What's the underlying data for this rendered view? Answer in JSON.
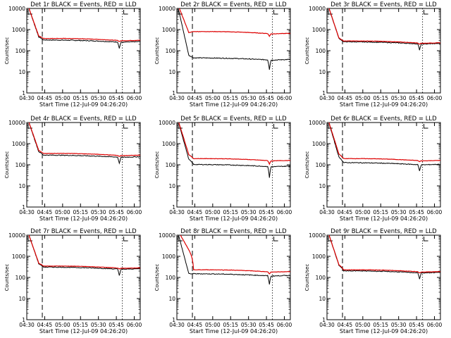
{
  "chart_data": {
    "type": "line",
    "layout": "3x3 grid",
    "x_tick_labels": [
      "04:30",
      "04:45",
      "05:00",
      "05:15",
      "05:30",
      "05:45",
      "06:00"
    ],
    "x_range_minutes": [
      0,
      95
    ],
    "xlabel": "Start Time (12-Jul-09 04:26:20)",
    "ylabel": "Counts/sec",
    "y_scale": "log",
    "ylim": [
      1,
      10000
    ],
    "y_tick_labels": [
      "1",
      "10",
      "100",
      "1000",
      "10000"
    ],
    "legend_text": "BLACK = Events, RED = LLD",
    "series_colors": {
      "events": "#000000",
      "lld": "#dd0000"
    },
    "marker_lines": [
      {
        "style": "dashed",
        "minute": 13
      },
      {
        "style": "dotted",
        "minute": 80
      },
      {
        "style": "dotted",
        "minute": 95
      }
    ],
    "panels": [
      {
        "title": "Det 1r BLACK = Events, RED = LLD",
        "events_level": 280,
        "lld_level": 330,
        "dip_depth": 0.5,
        "events_start": 450,
        "lld_start": 500
      },
      {
        "title": "Det 2r BLACK = Events, RED = LLD",
        "events_level": 40,
        "lld_level": 700,
        "dip_depth": 0.35,
        "events_start": 60,
        "lld_start": 720
      },
      {
        "title": "Det 3r BLACK = Events, RED = LLD",
        "events_level": 230,
        "lld_level": 250,
        "dip_depth": 0.5,
        "events_start": 380,
        "lld_start": 400
      },
      {
        "title": "Det 4r BLACK = Events, RED = LLD",
        "events_level": 250,
        "lld_level": 300,
        "dip_depth": 0.5,
        "events_start": 420,
        "lld_start": 480
      },
      {
        "title": "Det 5r BLACK = Events, RED = LLD",
        "events_level": 90,
        "lld_level": 170,
        "dip_depth": 0.3,
        "events_start": 180,
        "lld_start": 300
      },
      {
        "title": "Det 6r BLACK = Events, RED = LLD",
        "events_level": 110,
        "lld_level": 170,
        "dip_depth": 0.5,
        "events_start": 230,
        "lld_start": 320
      },
      {
        "title": "Det 7r BLACK = Events, RED = LLD",
        "events_level": 270,
        "lld_level": 300,
        "dip_depth": 0.5,
        "events_start": 450,
        "lld_start": 480
      },
      {
        "title": "Det 8r BLACK = Events, RED = LLD",
        "events_level": 130,
        "lld_level": 200,
        "dip_depth": 0.4,
        "events_start": 150,
        "lld_start": 2000
      },
      {
        "title": "Det 9r BLACK = Events, RED = LLD",
        "events_level": 180,
        "lld_level": 200,
        "dip_depth": 0.5,
        "events_start": 380,
        "lld_start": 400
      }
    ]
  }
}
